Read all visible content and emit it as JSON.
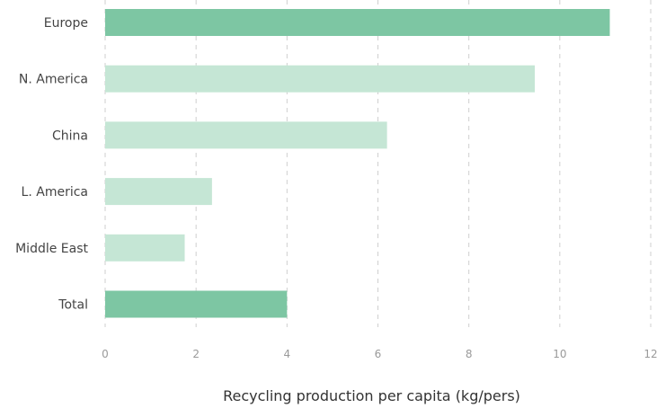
{
  "chart_data": {
    "type": "bar",
    "orientation": "horizontal",
    "categories": [
      "Europe",
      "N. America",
      "China",
      "L. America",
      "Middle East",
      "Total"
    ],
    "values": [
      11.1,
      9.45,
      6.2,
      2.35,
      1.75,
      4.0
    ],
    "xlabel": "Recycling production per capita (kg/pers)",
    "ylabel": "",
    "xlim": [
      0,
      12
    ],
    "xticks": [
      "0",
      "2",
      "4",
      "6",
      "8",
      "10",
      "12"
    ],
    "grid": true,
    "legend": "none",
    "colors": {
      "highlight": "#7dc6a3",
      "regular": "#c5e6d5",
      "highlight_categories": [
        "Europe",
        "Total"
      ]
    }
  }
}
